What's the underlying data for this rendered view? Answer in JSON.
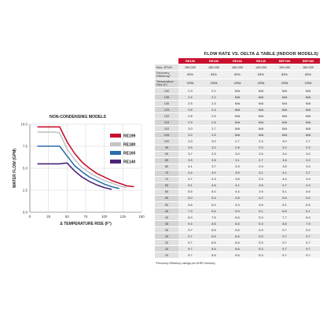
{
  "chart_data": {
    "type": "line",
    "title": "NON-CONDENSING MODELS",
    "xlabel": "Δ TEMPERATURE RISE (F°)",
    "ylabel": "WATER FLOW (GPM)",
    "xlim": [
      0,
      150
    ],
    "ylim": [
      0,
      10
    ],
    "xticks": [
      0,
      25,
      50,
      75,
      100,
      125,
      150
    ],
    "yticks": [
      "0.0",
      "2.5",
      "5.0",
      "7.5",
      "10.0"
    ],
    "legend_position": "right",
    "grid": true,
    "series": [
      {
        "name": "RE199",
        "color": "#c8102e",
        "x": [
          10,
          40,
          50,
          60,
          70,
          80,
          90,
          100,
          110,
          120,
          130,
          140
        ],
        "y": [
          9.7,
          9.7,
          8.0,
          6.7,
          5.7,
          5.0,
          4.4,
          4.0,
          3.6,
          3.3,
          3.0,
          2.9
        ]
      },
      {
        "name": "RE180",
        "color": "#c4c4c4",
        "x": [
          10,
          35,
          40,
          50,
          60,
          70,
          80,
          90,
          100,
          110,
          120,
          130
        ],
        "y": [
          9.1,
          9.1,
          9.0,
          7.2,
          6.0,
          5.1,
          4.5,
          4.0,
          3.6,
          3.3,
          3.0,
          2.8
        ]
      },
      {
        "name": "RE160",
        "color": "#2a6ead",
        "x": [
          10,
          35,
          40,
          50,
          60,
          70,
          80,
          90,
          100,
          110,
          120
        ],
        "y": [
          7.5,
          7.5,
          7.5,
          6.4,
          5.3,
          4.6,
          4.0,
          3.6,
          3.2,
          2.9,
          2.7
        ]
      },
      {
        "name": "RE140",
        "color": "#4b2479",
        "x": [
          10,
          30,
          40,
          50,
          60,
          70,
          80,
          90,
          100,
          110
        ],
        "y": [
          5.5,
          5.5,
          5.5,
          5.6,
          4.7,
          4.0,
          3.5,
          3.1,
          2.8,
          2.6
        ]
      }
    ]
  },
  "table": {
    "title": "FLOW RATE VS. DELTA Δ TABLE (INDOOR MODELS)",
    "models": [
      "RE199",
      "RE180",
      "RE160",
      "RE140",
      "REP199",
      "REP180"
    ],
    "btuh_label": "Max. BTUH",
    "btuh": [
      "199,000",
      "180,000",
      "160,000",
      "140,000",
      "199,000",
      "180,000"
    ],
    "efficiency_label": "Recovery Efficiency*",
    "efficiency": [
      "83%",
      "83%",
      "83%",
      "83%",
      "83%",
      "83%"
    ],
    "temp_label": "Temperature Rise (F)",
    "units": [
      "GPM",
      "GPM",
      "GPM",
      "GPM",
      "GPM",
      "GPM"
    ],
    "rows": [
      {
        "rise": "140",
        "values": [
          "2.3",
          "2.1",
          "N/A",
          "N/A",
          "N/A",
          "N/A"
        ]
      },
      {
        "rise": "135",
        "values": [
          "2.4",
          "2.2",
          "N/A",
          "N/A",
          "N/A",
          "N/A"
        ]
      },
      {
        "rise": "130",
        "values": [
          "2.5",
          "2.3",
          "N/A",
          "N/A",
          "N/A",
          "N/A"
        ]
      },
      {
        "rise": "125",
        "values": [
          "2.6",
          "2.4",
          "N/A",
          "N/A",
          "N/A",
          "N/A"
        ]
      },
      {
        "rise": "120",
        "values": [
          "2.8",
          "2.5",
          "N/A",
          "N/A",
          "N/A",
          "N/A"
        ]
      },
      {
        "rise": "115",
        "values": [
          "2.9",
          "2.6",
          "N/A",
          "N/A",
          "N/A",
          "N/A"
        ]
      },
      {
        "rise": "110",
        "values": [
          "3.0",
          "2.7",
          "N/A",
          "N/A",
          "N/A",
          "N/A"
        ]
      },
      {
        "rise": "105",
        "values": [
          "3.2",
          "2.9",
          "N/A",
          "N/A",
          "N/A",
          "N/A"
        ]
      },
      {
        "rise": "100",
        "values": [
          "3.3",
          "3.0",
          "2.7",
          "2.3",
          "3.0",
          "2.7"
        ]
      },
      {
        "rise": "95",
        "values": [
          "3.5",
          "3.2",
          "2.8",
          "2.5",
          "3.2",
          "2.9"
        ]
      },
      {
        "rise": "90",
        "values": [
          "3.7",
          "3.3",
          "3.0",
          "2.6",
          "3.4",
          "3.0"
        ]
      },
      {
        "rise": "85",
        "values": [
          "3.9",
          "3.5",
          "3.1",
          "2.7",
          "3.6",
          "3.2"
        ]
      },
      {
        "rise": "80",
        "values": [
          "4.1",
          "3.7",
          "3.3",
          "2.9",
          "3.8",
          "3.4"
        ]
      },
      {
        "rise": "75",
        "values": [
          "4.4",
          "4.0",
          "3.5",
          "3.1",
          "4.1",
          "3.7"
        ]
      },
      {
        "rise": "70",
        "values": [
          "4.7",
          "4.3",
          "3.8",
          "3.3",
          "4.4",
          "3.9"
        ]
      },
      {
        "rise": "65",
        "values": [
          "5.1",
          "4.6",
          "4.1",
          "3.6",
          "4.7",
          "4.3"
        ]
      },
      {
        "rise": "60",
        "values": [
          "5.5",
          "5.0",
          "4.4",
          "3.9",
          "5.1",
          "4.6"
        ]
      },
      {
        "rise": "55",
        "values": [
          "6.0",
          "5.4",
          "4.8",
          "4.2",
          "5.6",
          "5.0"
        ]
      },
      {
        "rise": "50",
        "values": [
          "6.6",
          "6.0",
          "5.3",
          "4.6",
          "6.1",
          "5.5"
        ]
      },
      {
        "rise": "45",
        "values": [
          "7.3",
          "6.6",
          "5.9",
          "5.1",
          "6.8",
          "6.1"
        ]
      },
      {
        "rise": "40",
        "values": [
          "8.3",
          "7.5",
          "6.6",
          "5.3",
          "7.7",
          "6.9"
        ]
      },
      {
        "rise": "35",
        "values": [
          "9.4",
          "8.5",
          "6.6",
          "5.3",
          "8.8",
          "7.9"
        ]
      },
      {
        "rise": "30",
        "values": [
          "9.7",
          "8.5",
          "6.6",
          "5.3",
          "9.7",
          "9.2"
        ]
      },
      {
        "rise": "25",
        "values": [
          "9.7",
          "8.5",
          "6.6",
          "5.3",
          "9.7",
          "9.7"
        ]
      },
      {
        "rise": "20",
        "values": [
          "9.7",
          "8.5",
          "6.6",
          "5.3",
          "9.7",
          "9.7"
        ]
      },
      {
        "rise": "15",
        "values": [
          "9.7",
          "8.5",
          "6.6",
          "5.3",
          "9.7",
          "9.7"
        ]
      },
      {
        "rise": "10",
        "values": [
          "9.7",
          "8.5",
          "6.6",
          "5.3",
          "9.7",
          "9.7"
        ]
      }
    ],
    "footnote": "*Recovery Efficiency ratings per AHRI Directory"
  }
}
